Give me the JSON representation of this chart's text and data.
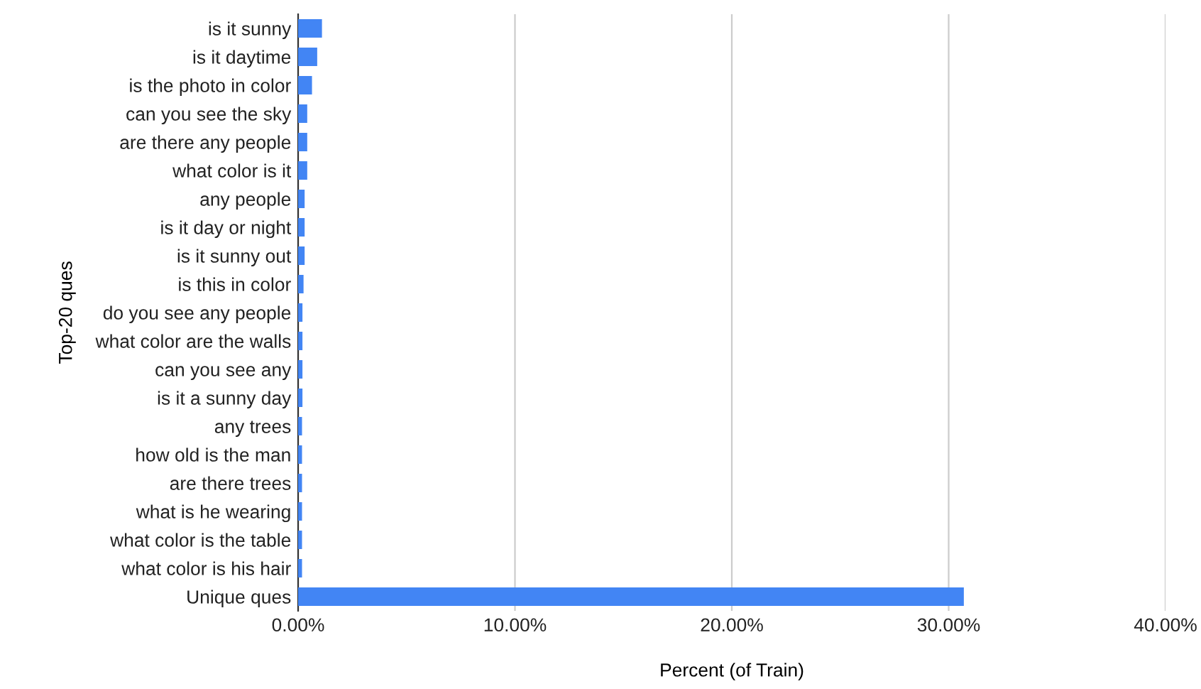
{
  "chart_data": {
    "type": "bar",
    "orientation": "horizontal",
    "xlabel": "Percent (of Train)",
    "ylabel": "Top-20 ques",
    "categories": [
      "is it sunny",
      "is it daytime",
      "is the photo in color",
      "can you see the sky",
      "are there any people",
      "what color is it",
      "any people",
      "is it day or night",
      "is it sunny out",
      "is this in color",
      "do you see any people",
      "what color are the walls",
      "can you see any",
      "is it a sunny day",
      "any trees",
      "how old is the man",
      "are there trees",
      "what is he wearing",
      "what color is the table",
      "what color is his hair",
      "Unique ques"
    ],
    "values": [
      1.1,
      0.88,
      0.64,
      0.42,
      0.42,
      0.42,
      0.3,
      0.3,
      0.3,
      0.25,
      0.2,
      0.2,
      0.2,
      0.2,
      0.18,
      0.18,
      0.18,
      0.18,
      0.18,
      0.18,
      30.7
    ],
    "color": "#4285f4",
    "xlim": [
      0,
      40
    ],
    "xticks": [
      {
        "value": 0,
        "label": "0.00%"
      },
      {
        "value": 10,
        "label": "10.00%"
      },
      {
        "value": 20,
        "label": "20.00%"
      },
      {
        "value": 30,
        "label": "30.00%"
      },
      {
        "value": 40,
        "label": "40.00%"
      }
    ],
    "grid": "x"
  }
}
